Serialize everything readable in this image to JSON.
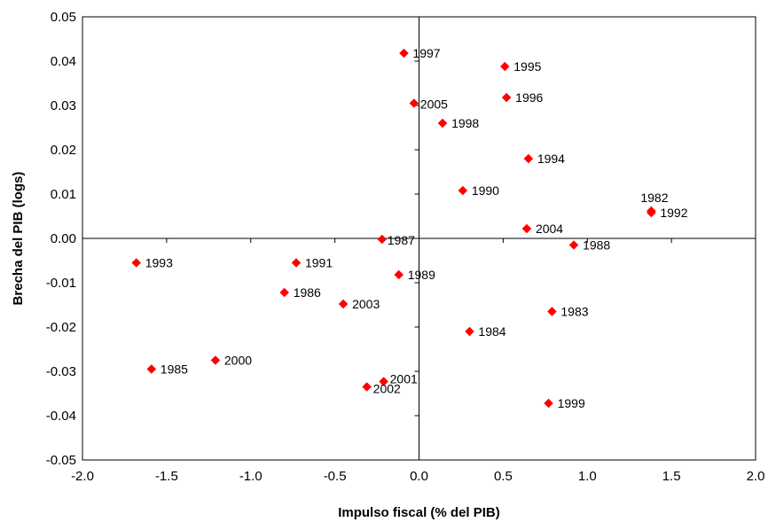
{
  "chart_data": {
    "type": "scatter",
    "title": "",
    "xlabel": "Impulso fiscal (% del PIB)",
    "ylabel": "Brecha del PIB (logs)",
    "xlim": [
      -2.0,
      2.0
    ],
    "ylim": [
      -0.05,
      0.05
    ],
    "x_ticks": [
      "-2.0",
      "-1.5",
      "-1.0",
      "-0.5",
      "0.0",
      "0.5",
      "1.0",
      "1.5",
      "2.0"
    ],
    "y_ticks": [
      "0.05",
      "0.04",
      "0.03",
      "0.02",
      "0.01",
      "0.00",
      "-0.01",
      "-0.02",
      "-0.03",
      "-0.04",
      "-0.05"
    ],
    "grid": false,
    "marker": "diamond",
    "marker_color": "#ff0000",
    "points": [
      {
        "label": "1982",
        "x": 1.38,
        "y": 0.0062
      },
      {
        "label": "1983",
        "x": 0.79,
        "y": -0.0165
      },
      {
        "label": "1984",
        "x": 0.3,
        "y": -0.021
      },
      {
        "label": "1985",
        "x": -1.59,
        "y": -0.0295
      },
      {
        "label": "1986",
        "x": -0.8,
        "y": -0.0122
      },
      {
        "label": "1987",
        "x": -0.22,
        "y": -0.0002
      },
      {
        "label": "1988",
        "x": 0.92,
        "y": -0.0015
      },
      {
        "label": "1989",
        "x": -0.12,
        "y": -0.0082
      },
      {
        "label": "1990",
        "x": 0.26,
        "y": 0.0108
      },
      {
        "label": "1991",
        "x": -0.73,
        "y": -0.0055
      },
      {
        "label": "1992",
        "x": 1.38,
        "y": 0.0058
      },
      {
        "label": "1993",
        "x": -1.68,
        "y": -0.0055
      },
      {
        "label": "1994",
        "x": 0.65,
        "y": 0.018
      },
      {
        "label": "1995",
        "x": 0.51,
        "y": 0.0388
      },
      {
        "label": "1996",
        "x": 0.52,
        "y": 0.0318
      },
      {
        "label": "1997",
        "x": -0.09,
        "y": 0.0418
      },
      {
        "label": "1998",
        "x": 0.14,
        "y": 0.026
      },
      {
        "label": "1999",
        "x": 0.77,
        "y": -0.0372
      },
      {
        "label": "2000",
        "x": -1.21,
        "y": -0.0275
      },
      {
        "label": "2001",
        "x": -0.21,
        "y": -0.0323
      },
      {
        "label": "2002",
        "x": -0.31,
        "y": -0.0335
      },
      {
        "label": "2003",
        "x": -0.45,
        "y": -0.0148
      },
      {
        "label": "2004",
        "x": 0.64,
        "y": 0.0022
      },
      {
        "label": "2005",
        "x": -0.03,
        "y": 0.0305
      }
    ]
  }
}
